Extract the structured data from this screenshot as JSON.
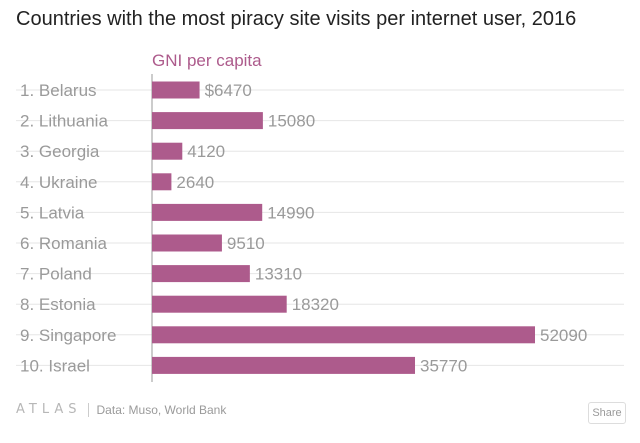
{
  "title": "Countries with the most piracy site visits per internet user, 2016",
  "chart_data": {
    "type": "bar",
    "orientation": "horizontal",
    "title": "Countries with the most piracy site visits per internet user, 2016",
    "series_label": "GNI per capita",
    "categories": [
      "1. Belarus",
      "2. Lithuania",
      "3. Georgia",
      "4. Ukraine",
      "5. Latvia",
      "6. Romania",
      "7. Poland",
      "8. Estonia",
      "9. Singapore",
      "10. Israel"
    ],
    "values": [
      6470,
      15080,
      4120,
      2640,
      14990,
      9510,
      13310,
      18320,
      52090,
      35770
    ],
    "value_labels": [
      "$6470",
      "15080",
      "4120",
      "2640",
      "14990",
      "9510",
      "13310",
      "18320",
      "52090",
      "35770"
    ],
    "xlim": [
      0,
      60000
    ],
    "bar_color": "#ad5b8c",
    "label_color": "#9a9a9a"
  },
  "footer": {
    "logo": "ATLAS",
    "source": "Data: Muso, World Bank",
    "share_label": "Share"
  }
}
